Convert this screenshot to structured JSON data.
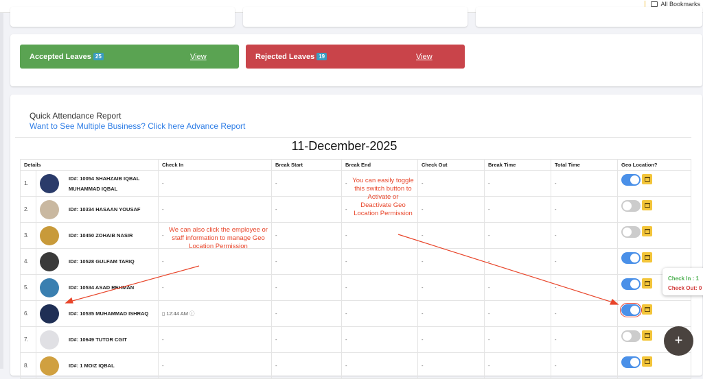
{
  "browser": {
    "bookmarks_label": "All Bookmarks"
  },
  "leaves": {
    "accepted": {
      "label": "Accepted Leaves",
      "count": "25",
      "view": "View",
      "color": "#5aa352"
    },
    "rejected": {
      "label": "Rejected Leaves",
      "count": "19",
      "view": "View",
      "color": "#c9444a"
    }
  },
  "report": {
    "title": "Quick Attendance Report",
    "advance_link": "Want to See Multiple Business? Click here Advance Report",
    "date": "11-December-2025",
    "columns": [
      "Details",
      "Check In",
      "Break Start",
      "Break End",
      "Check Out",
      "Break Time",
      "Total Time",
      "Geo Location?"
    ],
    "rows": [
      {
        "num": "1.",
        "name": "ID#: 10054 SHAHZAIB IQBAL MUHAMMAD IQBAL",
        "check_in": "-",
        "break_start": "-",
        "break_end": "-",
        "check_out": "-",
        "break_time": "-",
        "total_time": "-",
        "geo": true
      },
      {
        "num": "2.",
        "name": "ID#: 10334 HASAAN YOUSAF",
        "check_in": "-",
        "break_start": "-",
        "break_end": "-",
        "check_out": "-",
        "break_time": "-",
        "total_time": "-",
        "geo": false
      },
      {
        "num": "3.",
        "name": "ID#: 10450 ZOHAIB NASIR",
        "check_in": "-",
        "break_start": "-",
        "break_end": "-",
        "check_out": "-",
        "break_time": "-",
        "total_time": "-",
        "geo": false
      },
      {
        "num": "4.",
        "name": "ID#: 10528 GULFAM TARIQ",
        "check_in": "-",
        "break_start": "-",
        "break_end": "-",
        "check_out": "-",
        "break_time": "-",
        "total_time": "-",
        "geo": true
      },
      {
        "num": "5.",
        "name": "ID#: 10534 ASAD REHMAN",
        "check_in": "-",
        "break_start": "-",
        "break_end": "-",
        "check_out": "-",
        "break_time": "-",
        "total_time": "-",
        "geo": true
      },
      {
        "num": "6.",
        "name": "ID#: 10535 MUHAMMAD ISHRAQ",
        "check_in": "12:44 AM",
        "break_start": "-",
        "break_end": "-",
        "check_out": "-",
        "break_time": "-",
        "total_time": "-",
        "geo": true
      },
      {
        "num": "7.",
        "name": "ID#: 10649 TUTOR CGIT",
        "check_in": "-",
        "break_start": "-",
        "break_end": "-",
        "check_out": "-",
        "break_time": "-",
        "total_time": "-",
        "geo": false
      },
      {
        "num": "8.",
        "name": "ID#: 1 MOIZ IQBAL",
        "check_in": "-",
        "break_start": "-",
        "break_end": "-",
        "check_out": "-",
        "break_time": "-",
        "total_time": "-",
        "geo": true
      }
    ]
  },
  "annotations": {
    "toggle_note": "You can easily toggle this switch button to Activate or Deactivate Geo Location Permission",
    "employee_note": "We can also click the employee or staff information to manage Geo Location Permission"
  },
  "popover": {
    "check_in": "Check In : 1",
    "check_out": "Check Out: 0"
  },
  "fab": {
    "label": "+"
  }
}
